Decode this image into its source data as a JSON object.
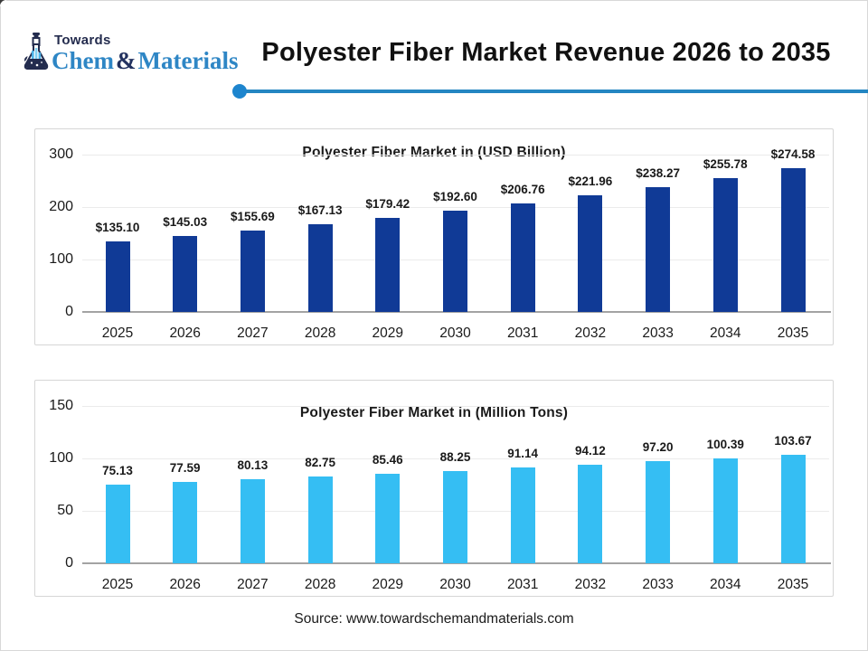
{
  "logo": {
    "towards": "Towards",
    "brand_chem": "Chem",
    "brand_amp": "&",
    "brand_materials": "Materials",
    "colors": {
      "dark": "#22315f",
      "blue": "#2e86c5",
      "flask_accent": "#4ab3e8"
    }
  },
  "header": {
    "title": "Polyester Fiber Market Revenue 2026 to 2035",
    "rule_color": "#2486c2",
    "dot_color": "#1d85ce"
  },
  "chart_data": [
    {
      "type": "bar",
      "title": "Polyester Fiber Market in (USD Billion)",
      "categories": [
        "2025",
        "2026",
        "2027",
        "2028",
        "2029",
        "2030",
        "2031",
        "2032",
        "2033",
        "2034",
        "2035"
      ],
      "values": [
        135.1,
        145.03,
        155.69,
        167.13,
        179.42,
        192.6,
        206.76,
        221.96,
        238.27,
        255.78,
        274.58
      ],
      "value_labels": [
        "$135.10",
        "$145.03",
        "$155.69",
        "$167.13",
        "$179.42",
        "$192.60",
        "$206.76",
        "$221.96",
        "$238.27",
        "$255.78",
        "$274.58"
      ],
      "bar_color": "#103a96",
      "xlabel": "",
      "ylabel": "",
      "ylim": [
        0,
        300
      ],
      "yticks": [
        0,
        100,
        200,
        300
      ],
      "grid": true,
      "legend": "none"
    },
    {
      "type": "bar",
      "title": "Polyester Fiber Market in (Million Tons)",
      "categories": [
        "2025",
        "2026",
        "2027",
        "2028",
        "2029",
        "2030",
        "2031",
        "2032",
        "2033",
        "2034",
        "2035"
      ],
      "values": [
        75.13,
        77.59,
        80.13,
        82.75,
        85.46,
        88.25,
        91.14,
        94.12,
        97.2,
        100.39,
        103.67
      ],
      "value_labels": [
        "75.13",
        "77.59",
        "80.13",
        "82.75",
        "85.46",
        "88.25",
        "91.14",
        "94.12",
        "97.20",
        "100.39",
        "103.67"
      ],
      "bar_color": "#35bef3",
      "xlabel": "",
      "ylabel": "",
      "ylim": [
        0,
        150
      ],
      "yticks": [
        0,
        50,
        100,
        150
      ],
      "grid": true,
      "legend": "none"
    }
  ],
  "footer": {
    "source": "Source: www.towardschemandmaterials.com"
  }
}
